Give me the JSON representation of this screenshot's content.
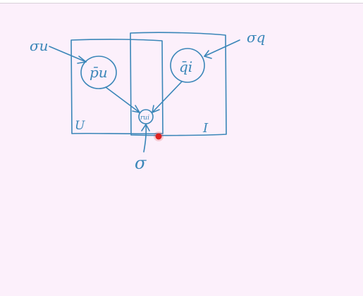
{
  "diagram": {
    "ink_color": "#3a86b8",
    "background_color": "#fcf0fb",
    "pointer_color": "#e02020",
    "labels": {
      "sigma_u": "σu",
      "sigma_q": "σq",
      "p_u": "p̄u",
      "q_i": "q̄i",
      "r_ui": "rui",
      "plate_u": "U",
      "plate_i": "I",
      "sigma": "σ"
    }
  }
}
